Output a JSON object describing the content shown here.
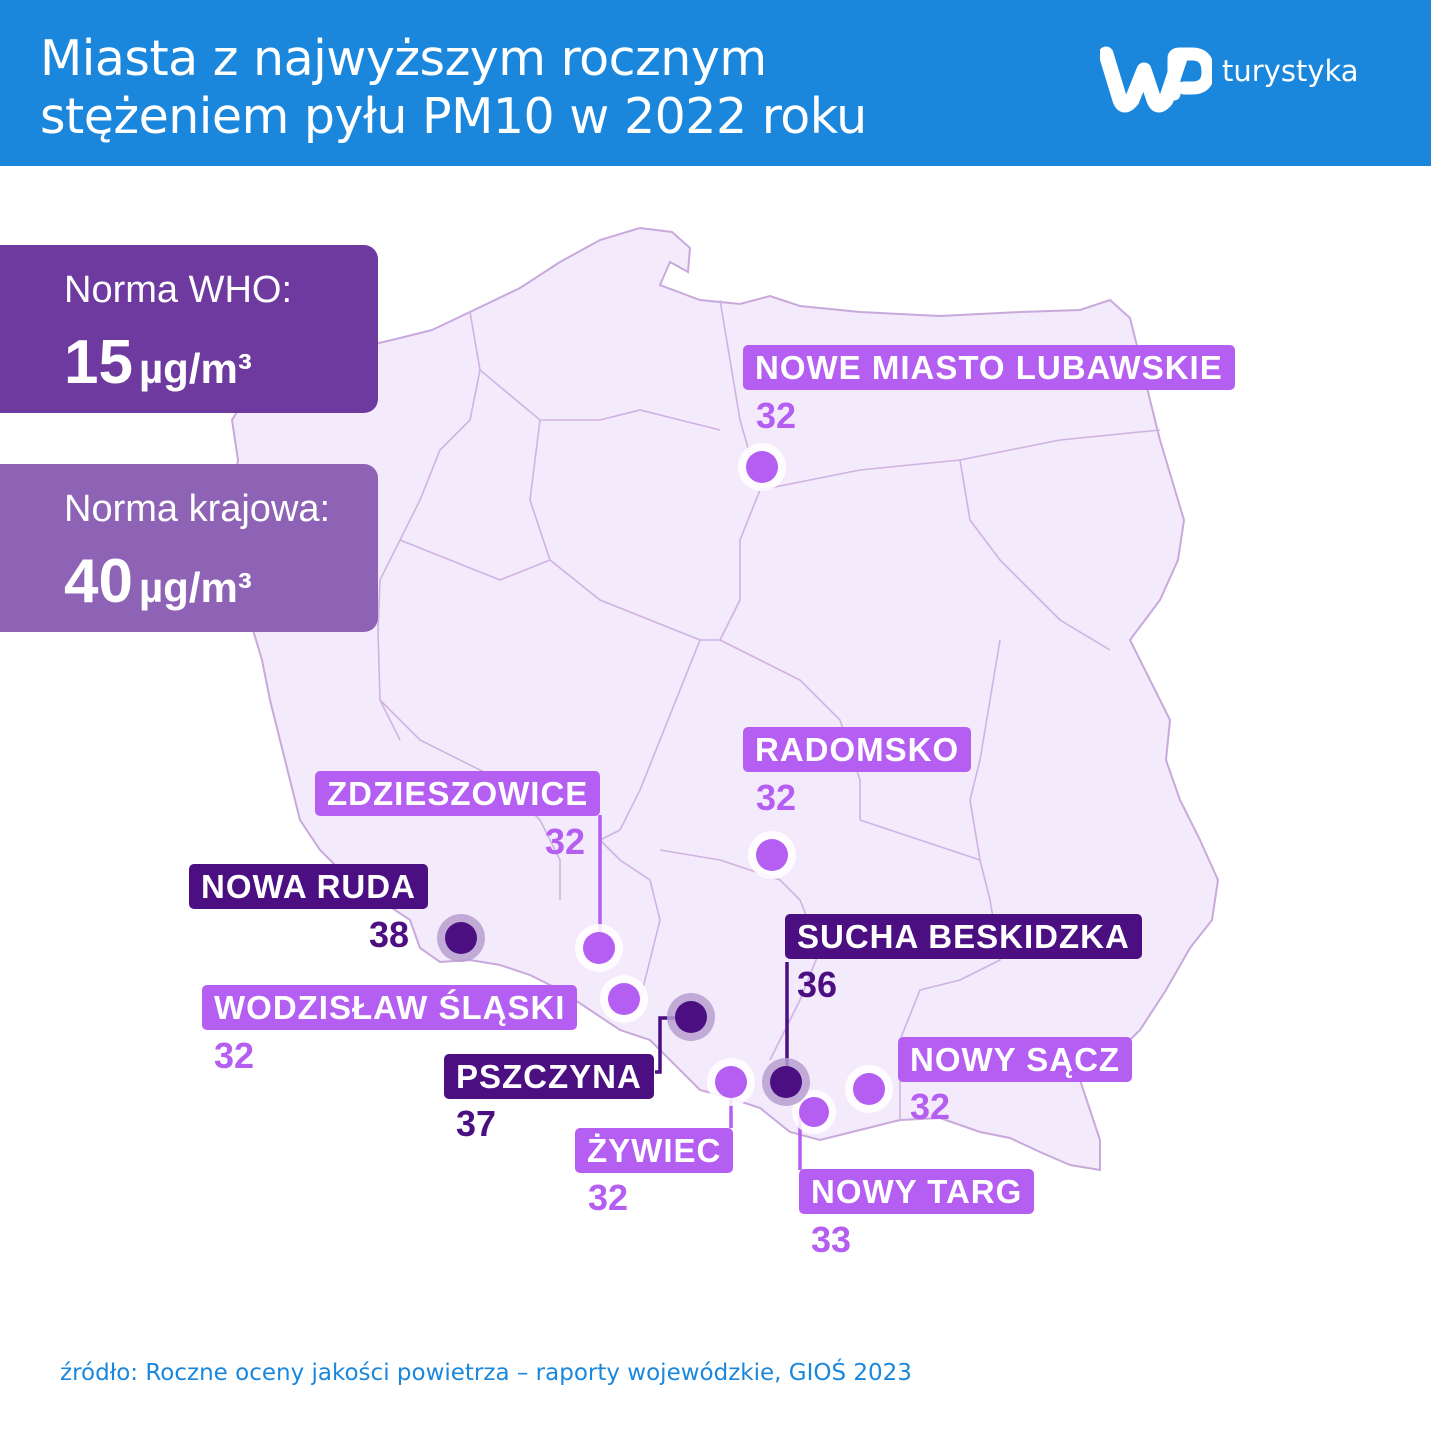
{
  "header": {
    "title_line1": "Miasta z najwyższym rocznym",
    "title_line2": "stężeniem pyłu PM10 w 2022 roku",
    "brand_text": "turystyka",
    "brand_color": "#1a87dc"
  },
  "norms": {
    "who_label": "Norma WHO:",
    "who_value": "15",
    "who_unit": "µg/m³",
    "national_label": "Norma krajowa:",
    "national_value": "40",
    "national_unit": "µg/m³"
  },
  "legend_colors": {
    "below_35": "#b55ef2",
    "above_35": "#4b0f82",
    "map_fill": "#f3eafb",
    "map_border": "#c9a9dc"
  },
  "cities": [
    {
      "name": "NOWE MIASTO LUBAWSKIE",
      "value": "32",
      "tone": "light"
    },
    {
      "name": "RADOMSKO",
      "value": "32",
      "tone": "light"
    },
    {
      "name": "ZDZIESZOWICE",
      "value": "32",
      "tone": "light"
    },
    {
      "name": "NOWA RUDA",
      "value": "38",
      "tone": "dark"
    },
    {
      "name": "WODZISŁAW ŚLĄSKI",
      "value": "32",
      "tone": "light"
    },
    {
      "name": "PSZCZYNA",
      "value": "37",
      "tone": "dark"
    },
    {
      "name": "ŻYWIEC",
      "value": "32",
      "tone": "light"
    },
    {
      "name": "SUCHA BESKIDZKA",
      "value": "36",
      "tone": "dark"
    },
    {
      "name": "NOWY SĄCZ",
      "value": "32",
      "tone": "light"
    },
    {
      "name": "NOWY TARG",
      "value": "33",
      "tone": "light"
    }
  ],
  "source": "źródło: Roczne oceny jakości powietrza – raporty wojewódzkie, GIOŚ 2023"
}
